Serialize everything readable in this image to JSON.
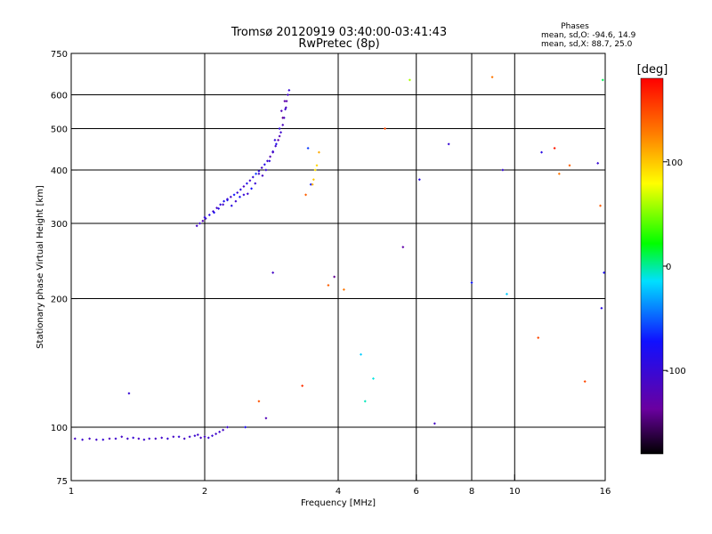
{
  "chart_data": {
    "type": "scatter",
    "title_line1": "Tromsø 20120919 03:40:00-03:41:43",
    "title_line2": "RwPretec (8p)",
    "phases": {
      "heading": "Phases",
      "line_o": "mean, sd,O: -94.6, 14.9",
      "line_x": "mean, sd,X:  88.7, 25.0"
    },
    "xlabel": "Frequency [MHz]",
    "ylabel": "Stationary phase Virtual Height [km]",
    "x_scale": "log",
    "y_scale": "log",
    "xlim": [
      1,
      16
    ],
    "ylim": [
      75,
      750
    ],
    "x_ticks": [
      1,
      2,
      4,
      6,
      8,
      10,
      16
    ],
    "x_tick_labels": [
      "1",
      "2",
      "4",
      "6",
      "8",
      "10",
      "16"
    ],
    "y_ticks": [
      75,
      100,
      200,
      300,
      400,
      500,
      600,
      750
    ],
    "y_tick_labels": [
      "75",
      "100",
      "200",
      "300",
      "400",
      "500",
      "600",
      "750"
    ],
    "grid": true,
    "colorbar": {
      "label": "[deg]",
      "range": [
        -180,
        180
      ],
      "ticks": [
        100,
        0,
        -100
      ],
      "tick_labels": [
        "100",
        "0",
        "-100"
      ]
    },
    "series": [
      {
        "name": "",
        "role": "E-layer trace (phase, deg)",
        "x": [
          1.02,
          1.06,
          1.1,
          1.14,
          1.18,
          1.22,
          1.26,
          1.3,
          1.34,
          1.38,
          1.42,
          1.46,
          1.5,
          1.55,
          1.6,
          1.65,
          1.7,
          1.75,
          1.8,
          1.85,
          1.9,
          1.93,
          1.96,
          2.0,
          2.04,
          2.08,
          2.12,
          2.16,
          2.2,
          2.25
        ],
        "y": [
          94,
          93.5,
          94,
          93.5,
          93.5,
          94,
          94,
          95,
          94,
          94.5,
          94,
          93.5,
          94,
          94,
          94.5,
          94,
          95,
          95,
          94,
          95,
          95.5,
          96,
          94.5,
          95,
          94.5,
          95.5,
          96.5,
          97.5,
          98.5,
          100
        ],
        "phase": [
          -110,
          -105,
          -112,
          -108,
          -100,
          -115,
          -105,
          -110,
          -108,
          -100,
          -112,
          -106,
          -104,
          -110,
          -108,
          -102,
          -112,
          -100,
          -110,
          -106,
          -104,
          -108,
          -112,
          -110,
          -105,
          -102,
          -108,
          -106,
          -110,
          -104
        ]
      },
      {
        "name": "",
        "role": "F-layer trace (phase, deg)",
        "x": [
          1.92,
          1.95,
          1.98,
          2.01,
          2.05,
          2.09,
          2.13,
          2.17,
          2.21,
          2.25,
          2.29,
          2.33,
          2.37,
          2.41,
          2.45,
          2.49,
          2.53,
          2.57,
          2.61,
          2.65,
          2.69,
          2.73,
          2.77,
          2.81,
          2.85,
          2.89,
          2.93,
          2.97,
          3.0,
          3.02,
          3.04,
          3.06,
          3.08,
          3.1,
          2.0,
          2.1,
          2.2,
          2.3,
          2.4,
          2.5,
          2.6,
          2.7,
          2.8,
          2.9,
          2.95,
          3.0,
          3.05,
          2.15,
          2.35,
          2.55,
          2.75,
          2.85,
          2.95,
          3.03,
          2.25,
          2.45,
          2.65,
          2.88,
          2.98
        ],
        "y": [
          296,
          300,
          304,
          308,
          314,
          320,
          326,
          332,
          338,
          342,
          346,
          350,
          354,
          360,
          366,
          372,
          378,
          385,
          392,
          398,
          405,
          412,
          420,
          430,
          442,
          455,
          470,
          490,
          510,
          530,
          555,
          580,
          600,
          615,
          310,
          318,
          332,
          330,
          346,
          352,
          372,
          388,
          420,
          460,
          480,
          530,
          560,
          325,
          338,
          362,
          400,
          440,
          500,
          580,
          340,
          350,
          392,
          470,
          550
        ],
        "phase": [
          -110,
          -105,
          -120,
          -100,
          -90,
          -108,
          -112,
          -95,
          -80,
          -104,
          -110,
          -70,
          -100,
          -90,
          -112,
          -85,
          -108,
          -100,
          -60,
          -95,
          -110,
          -88,
          -105,
          -120,
          -98,
          -110,
          -130,
          -105,
          -115,
          -108,
          -102,
          -125,
          -110,
          -100,
          -100,
          -80,
          -110,
          -90,
          -75,
          -105,
          -100,
          -110,
          -95,
          -85,
          -120,
          -140,
          -115,
          -90,
          -105,
          -75,
          -100,
          -110,
          -95,
          -130,
          -85,
          -100,
          -110,
          -95,
          -120
        ]
      },
      {
        "name": "",
        "role": "Scattered echoes (phase, deg)",
        "x": [
          1.35,
          2.65,
          2.75,
          2.85,
          2.47,
          3.32,
          3.38,
          3.42,
          3.47,
          3.5,
          3.52,
          3.55,
          3.58,
          3.62,
          3.8,
          3.92,
          4.12,
          4.5,
          4.6,
          4.8,
          5.1,
          5.6,
          5.8,
          6.1,
          6.6,
          7.1,
          8.0,
          8.9,
          9.4,
          9.6,
          11.3,
          11.5,
          12.3,
          12.6,
          13.3,
          14.4,
          15.4,
          15.6,
          15.7,
          15.8,
          15.9
        ],
        "y": [
          120,
          115,
          105,
          230,
          100,
          125,
          350,
          450,
          370,
          370,
          380,
          400,
          410,
          440,
          215,
          225,
          210,
          148,
          115,
          130,
          500,
          264,
          650,
          380,
          102,
          460,
          218,
          660,
          400,
          205,
          162,
          440,
          450,
          392,
          410,
          128,
          415,
          330,
          190,
          650,
          230
        ],
        "phase": [
          -100,
          145,
          -120,
          -110,
          -80,
          160,
          140,
          -60,
          -70,
          110,
          100,
          90,
          95,
          110,
          140,
          -140,
          130,
          -20,
          -5,
          -10,
          150,
          -130,
          60,
          -90,
          -110,
          -100,
          -70,
          130,
          -100,
          -20,
          150,
          -90,
          170,
          130,
          140,
          150,
          -100,
          140,
          -90,
          10,
          -80
        ]
      }
    ]
  }
}
